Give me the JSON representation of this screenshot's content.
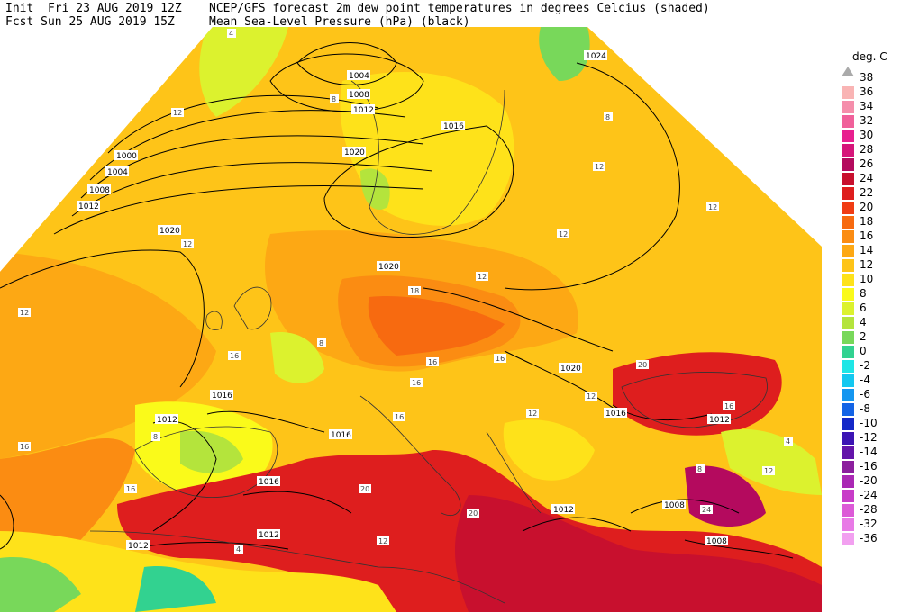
{
  "header": {
    "init": "Init  Fri 23 AUG 2019 12Z",
    "fcst": "Fcst Sun 25 AUG 2019 15Z",
    "title1": "NCEP/GFS forecast 2m dew point temperatures in degrees Celcius (shaded)",
    "title2": "Mean Sea-Level Pressure (hPa) (black)"
  },
  "legend": {
    "unit": "deg. C",
    "colors": {
      "38": "#aaaaaa",
      "36": "#f9b4b4",
      "34": "#f58eab",
      "32": "#f0609a",
      "30": "#e8208f",
      "28": "#d6157a",
      "26": "#b40a5e",
      "24": "#c8102e",
      "22": "#de1e1e",
      "20": "#f03c14",
      "18": "#f76a10",
      "16": "#fb8c12",
      "14": "#fda814",
      "12": "#fec418",
      "10": "#fee21a",
      "8": "#fafa1a",
      "6": "#dcf22e",
      "4": "#b4e43c",
      "2": "#78d85a",
      "0": "#32d290",
      "-2": "#1ee6e6",
      "-4": "#14c8f0",
      "-6": "#1496f0",
      "-8": "#1464e6",
      "-10": "#1428c8",
      "-12": "#3c14b4",
      "-14": "#6414aa",
      "-16": "#8c1e9e",
      "-20": "#aa28b4",
      "-24": "#c83cc8",
      "-28": "#dc5ad7",
      "-32": "#e87ae6",
      "-36": "#f2a0f0"
    },
    "labels": [
      "38",
      "36",
      "34",
      "32",
      "30",
      "28",
      "26",
      "24",
      "22",
      "20",
      "18",
      "16",
      "14",
      "12",
      "10",
      "8",
      "6",
      "4",
      "2",
      "0",
      "-2",
      "-4",
      "-6",
      "-8",
      "-10",
      "-12",
      "-14",
      "-16",
      "-20",
      "-24",
      "-28",
      "-32",
      "-36"
    ]
  },
  "isobars": [
    "1000",
    "1004",
    "1004",
    "1008",
    "1008",
    "1012",
    "1012",
    "1012",
    "1012",
    "1012",
    "1012",
    "1016",
    "1016",
    "1016",
    "1016",
    "1016",
    "1020",
    "1020",
    "1020",
    "1020",
    "1024",
    "1008",
    "1008",
    "1012"
  ],
  "dewpoint_labels": [
    "4",
    "8",
    "12",
    "12",
    "8",
    "12",
    "12",
    "12",
    "16",
    "16",
    "16",
    "18",
    "16",
    "16",
    "20",
    "20",
    "24",
    "20",
    "12",
    "12",
    "16",
    "12",
    "8",
    "4",
    "16",
    "12",
    "8",
    "4",
    "12",
    "8",
    "16",
    "12"
  ]
}
